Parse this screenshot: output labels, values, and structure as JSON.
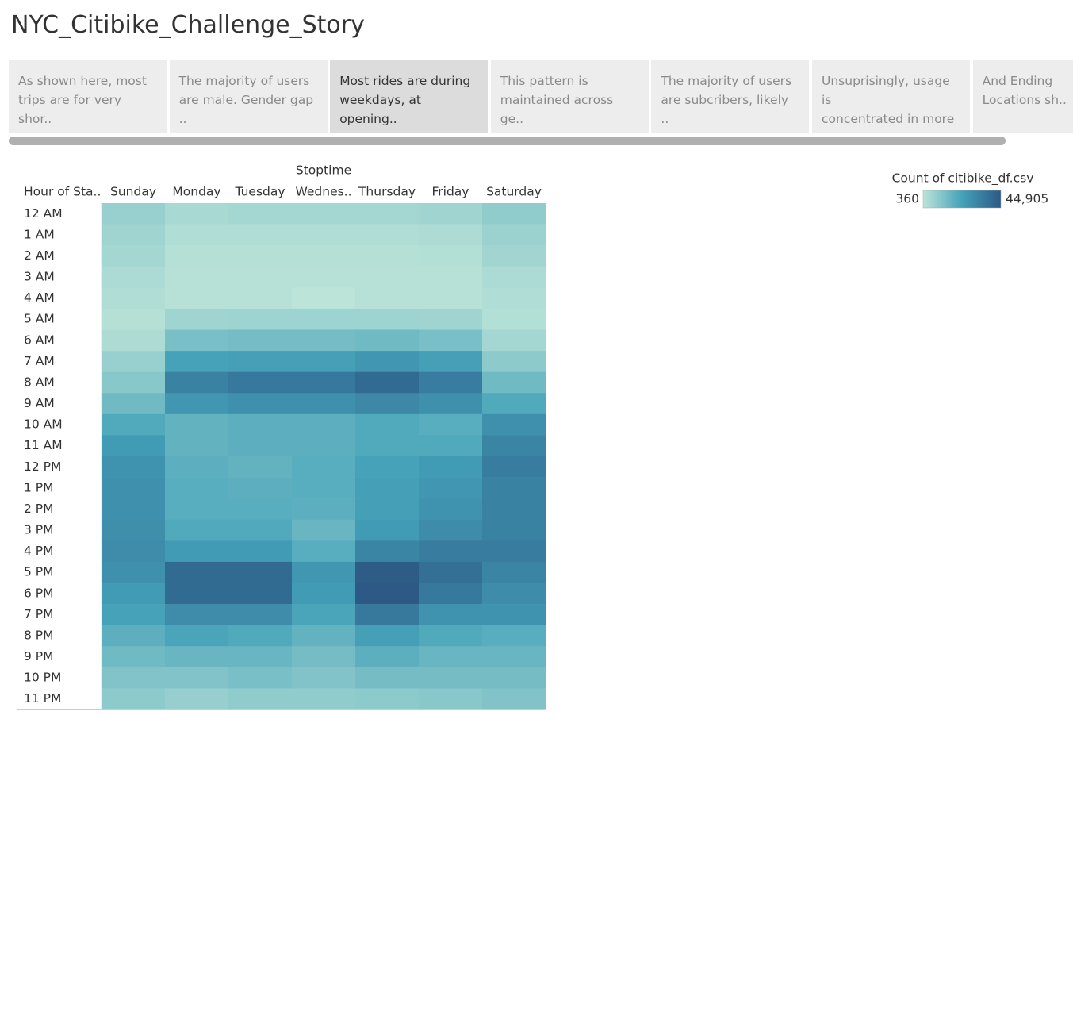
{
  "story_title": "NYC_Citibike_Challenge_Story",
  "tabs": [
    {
      "text": "As shown here, most\ntrips are for very shor.."
    },
    {
      "text": "The majority of users\nare male. Gender gap .."
    },
    {
      "text": "Most rides are during\nweekdays, at opening.."
    },
    {
      "text": "This pattern is\nmaintained across ge.."
    },
    {
      "text": "The majority of users\nare subcribers, likely .."
    },
    {
      "text": "Unsuprisingly, usage is\nconcentrated in more .."
    },
    {
      "text": "And Ending\nLocations sh.."
    }
  ],
  "active_tab": 2,
  "chart_data": {
    "type": "heatmap",
    "x_label": "Stoptime",
    "y_label": "Hour of Sta..",
    "x_categories": [
      "Sunday",
      "Monday",
      "Tuesday",
      "Wednes..",
      "Thursday",
      "Friday",
      "Saturday"
    ],
    "y_categories": [
      "12 AM",
      "1 AM",
      "2 AM",
      "3 AM",
      "4 AM",
      "5 AM",
      "6 AM",
      "7 AM",
      "8 AM",
      "9 AM",
      "10 AM",
      "11 AM",
      "12 PM",
      "1 PM",
      "2 PM",
      "3 PM",
      "4 PM",
      "5 PM",
      "6 PM",
      "7 PM",
      "8 PM",
      "9 PM",
      "10 PM",
      "11 PM"
    ],
    "values": [
      [
        7042,
        3924,
        4815,
        4815,
        4815,
        5705,
        8378
      ],
      [
        5705,
        2587,
        2587,
        2587,
        2587,
        3033,
        6596
      ],
      [
        4815,
        1696,
        1696,
        1696,
        1696,
        2142,
        5260
      ],
      [
        3478,
        1251,
        1251,
        1251,
        1251,
        1251,
        3478
      ],
      [
        2587,
        1251,
        1251,
        360,
        1251,
        1251,
        2587
      ],
      [
        1696,
        5705,
        6151,
        6151,
        6151,
        5705,
        2142
      ],
      [
        3033,
        12833,
        13724,
        13724,
        14614,
        12833,
        4815
      ],
      [
        7042,
        22633,
        23523,
        23523,
        26196,
        23523,
        9269
      ],
      [
        10160,
        32432,
        35105,
        35105,
        39560,
        33769,
        14614
      ],
      [
        14614,
        26196,
        27978,
        27978,
        30651,
        27978,
        20405
      ],
      [
        20405,
        17287,
        18178,
        18178,
        20405,
        19069,
        27978
      ],
      [
        24860,
        17287,
        18178,
        18178,
        20405,
        20405,
        31542
      ],
      [
        27087,
        18178,
        17287,
        19069,
        22633,
        24860,
        33769
      ],
      [
        27978,
        19069,
        18178,
        19069,
        23523,
        26196,
        32432
      ],
      [
        27978,
        19069,
        19069,
        18178,
        23523,
        27087,
        32432
      ],
      [
        28423,
        20405,
        20405,
        15951,
        24860,
        29314,
        32432
      ],
      [
        29314,
        24860,
        24860,
        19069,
        31542,
        33769,
        33769
      ],
      [
        27978,
        39560,
        39560,
        26196,
        44014,
        38223,
        31542
      ],
      [
        24860,
        39560,
        39560,
        24860,
        44905,
        35105,
        29314
      ],
      [
        22633,
        29314,
        29314,
        21742,
        35105,
        27087,
        27087
      ],
      [
        18178,
        21742,
        20405,
        17287,
        23523,
        20405,
        19069
      ],
      [
        14614,
        15951,
        15951,
        13724,
        18178,
        15951,
        15951
      ],
      [
        11496,
        11496,
        12833,
        11496,
        13724,
        13724,
        13724
      ],
      [
        9269,
        7487,
        8378,
        8378,
        9269,
        10160,
        11496
      ]
    ],
    "colorbar": {
      "title": "Count of citibike_df.csv",
      "ticks": [
        360,
        {
          "value": 44905,
          "label": "44,905"
        }
      ],
      "colors": [
        "#bce4d8",
        "#45a2b9",
        "#2c5985"
      ]
    }
  }
}
